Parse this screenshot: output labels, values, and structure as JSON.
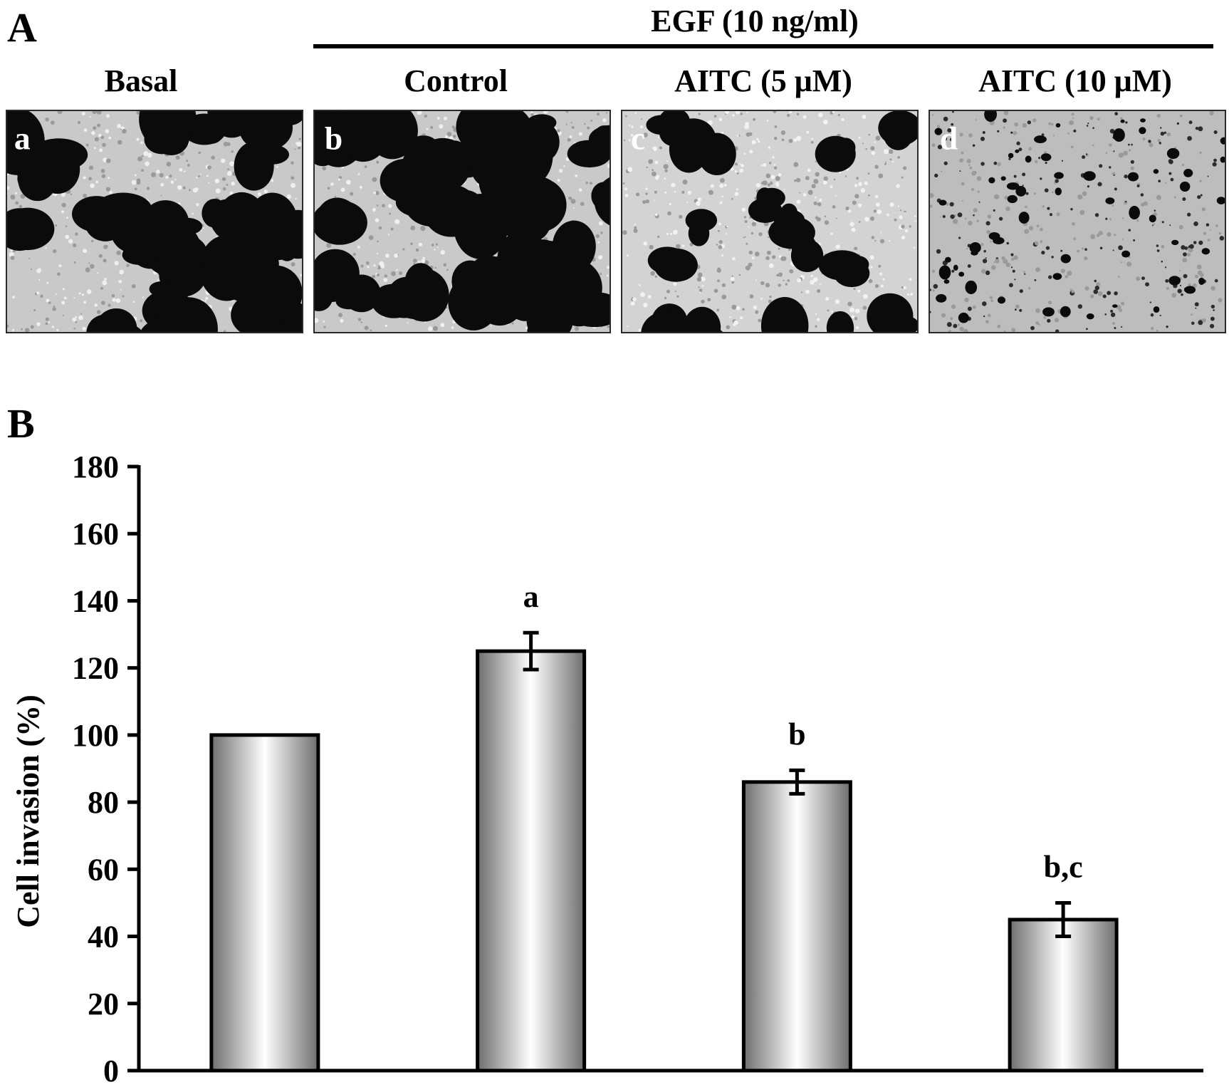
{
  "panel_a": {
    "letter": "A",
    "treatment_label": "EGF (10 ng/ml)",
    "columns": [
      {
        "label": "Basal",
        "sublabel": "a",
        "density": "dense"
      },
      {
        "label": "Control",
        "sublabel": "b",
        "density": "dense"
      },
      {
        "label": "AITC (5 μM)",
        "sublabel": "c",
        "density": "medium"
      },
      {
        "label": "AITC (10 μM)",
        "sublabel": "d",
        "density": "sparse"
      }
    ]
  },
  "panel_b": {
    "letter": "B"
  },
  "chart_data": {
    "type": "bar",
    "categories": [
      "Basal",
      "Control",
      "AITC (5 μM)",
      "AITC (10 μM)"
    ],
    "category_labels_shown": false,
    "values": [
      100,
      125,
      86,
      45
    ],
    "errors": [
      0,
      5.5,
      3.5,
      5
    ],
    "annotations": [
      "",
      "a",
      "b",
      "b,c"
    ],
    "ylabel": "Cell invasion (%)",
    "ylim": [
      0,
      180
    ],
    "yticks": [
      0,
      20,
      40,
      60,
      80,
      100,
      120,
      140,
      160,
      180
    ],
    "grid": false,
    "bar_fill": "grey-white cylindrical gradient",
    "colors": {
      "bar_edge": "#000000",
      "bar_dark": "#707070",
      "bar_light": "#ffffff"
    }
  }
}
